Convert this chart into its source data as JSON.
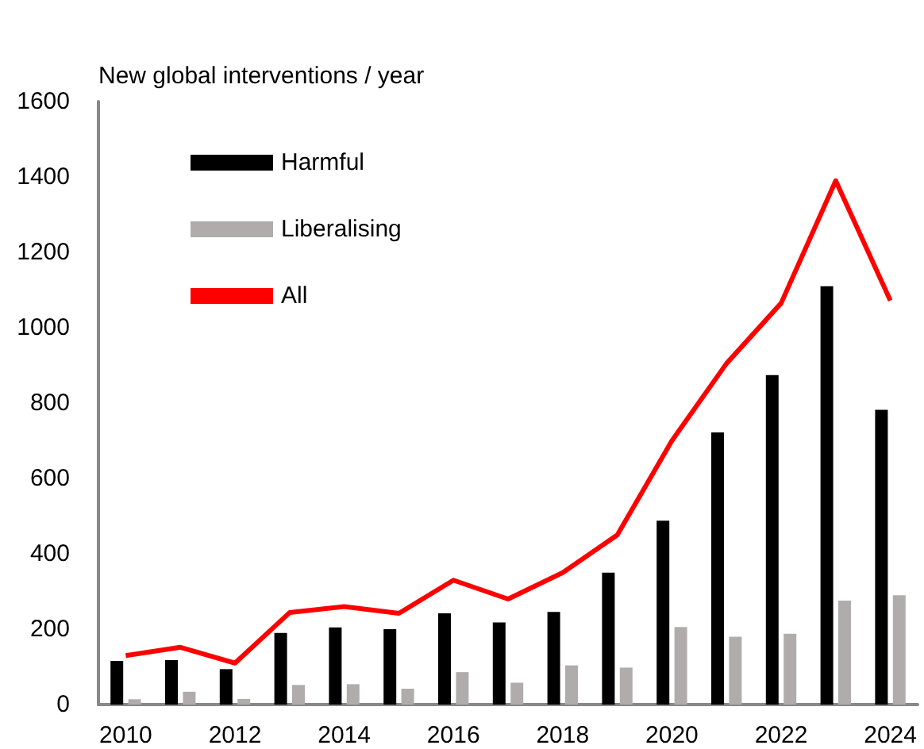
{
  "chart_data": {
    "type": "bar",
    "ylabel": "New global interventions / year",
    "categories": [
      "2010",
      null,
      "2012",
      null,
      "2014",
      null,
      "2016",
      null,
      "2018",
      null,
      "2020",
      null,
      "2022",
      null,
      "2024"
    ],
    "series": [
      {
        "name": "Harmful",
        "color": "#000000",
        "values": [
          116,
          118,
          94,
          190,
          205,
          200,
          242,
          218,
          246,
          350,
          488,
          722,
          874,
          1110,
          782
        ]
      },
      {
        "name": "Liberalising",
        "color": "#b0acac",
        "values": [
          14,
          34,
          15,
          52,
          54,
          42,
          86,
          58,
          104,
          98,
          206,
          180,
          188,
          276,
          290
        ]
      },
      {
        "name": "All",
        "type": "line",
        "color": "#ff0000",
        "values": [
          130,
          152,
          110,
          244,
          260,
          242,
          330,
          280,
          350,
          450,
          700,
          905,
          1065,
          1390,
          1072
        ]
      }
    ],
    "ylim": [
      0,
      1600
    ],
    "yticks": [
      0,
      200,
      400,
      600,
      800,
      1000,
      1200,
      1400,
      1600
    ],
    "grid": false,
    "legend": "top left",
    "marker": "none",
    "line_style": "solid"
  }
}
